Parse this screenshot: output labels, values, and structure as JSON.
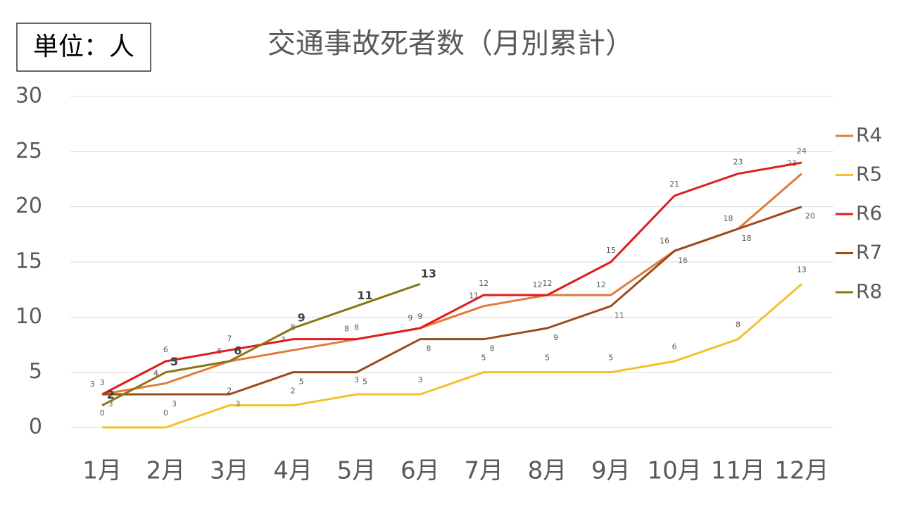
{
  "chart_data": {
    "type": "line",
    "title": "交通事故死者数（月別累計）",
    "unit_label": "単位：人",
    "categories": [
      "1月",
      "2月",
      "3月",
      "4月",
      "5月",
      "6月",
      "7月",
      "8月",
      "9月",
      "10月",
      "11月",
      "12月"
    ],
    "series": [
      {
        "name": "R4",
        "color": "#e07b39",
        "values": [
          3,
          4,
          6,
          7,
          8,
          9,
          11,
          12,
          12,
          16,
          18,
          23
        ]
      },
      {
        "name": "R5",
        "color": "#f5c02a",
        "values": [
          0,
          0,
          2,
          2,
          3,
          3,
          5,
          5,
          5,
          6,
          8,
          13
        ]
      },
      {
        "name": "R6",
        "color": "#e01b1b",
        "values": [
          3,
          6,
          7,
          8,
          8,
          9,
          12,
          12,
          15,
          21,
          23,
          24
        ]
      },
      {
        "name": "R7",
        "color": "#9c4a1a",
        "values": [
          3,
          3,
          3,
          5,
          5,
          8,
          8,
          9,
          11,
          16,
          18,
          20
        ]
      },
      {
        "name": "R8",
        "color": "#8b7510",
        "values": [
          2,
          5,
          6,
          9,
          11,
          13,
          null,
          null,
          null,
          null,
          null,
          null
        ]
      }
    ],
    "ylim": [
      0,
      30
    ],
    "yticks": [
      0,
      5,
      10,
      15,
      20,
      25,
      30
    ],
    "grid": true,
    "legend": "right"
  }
}
